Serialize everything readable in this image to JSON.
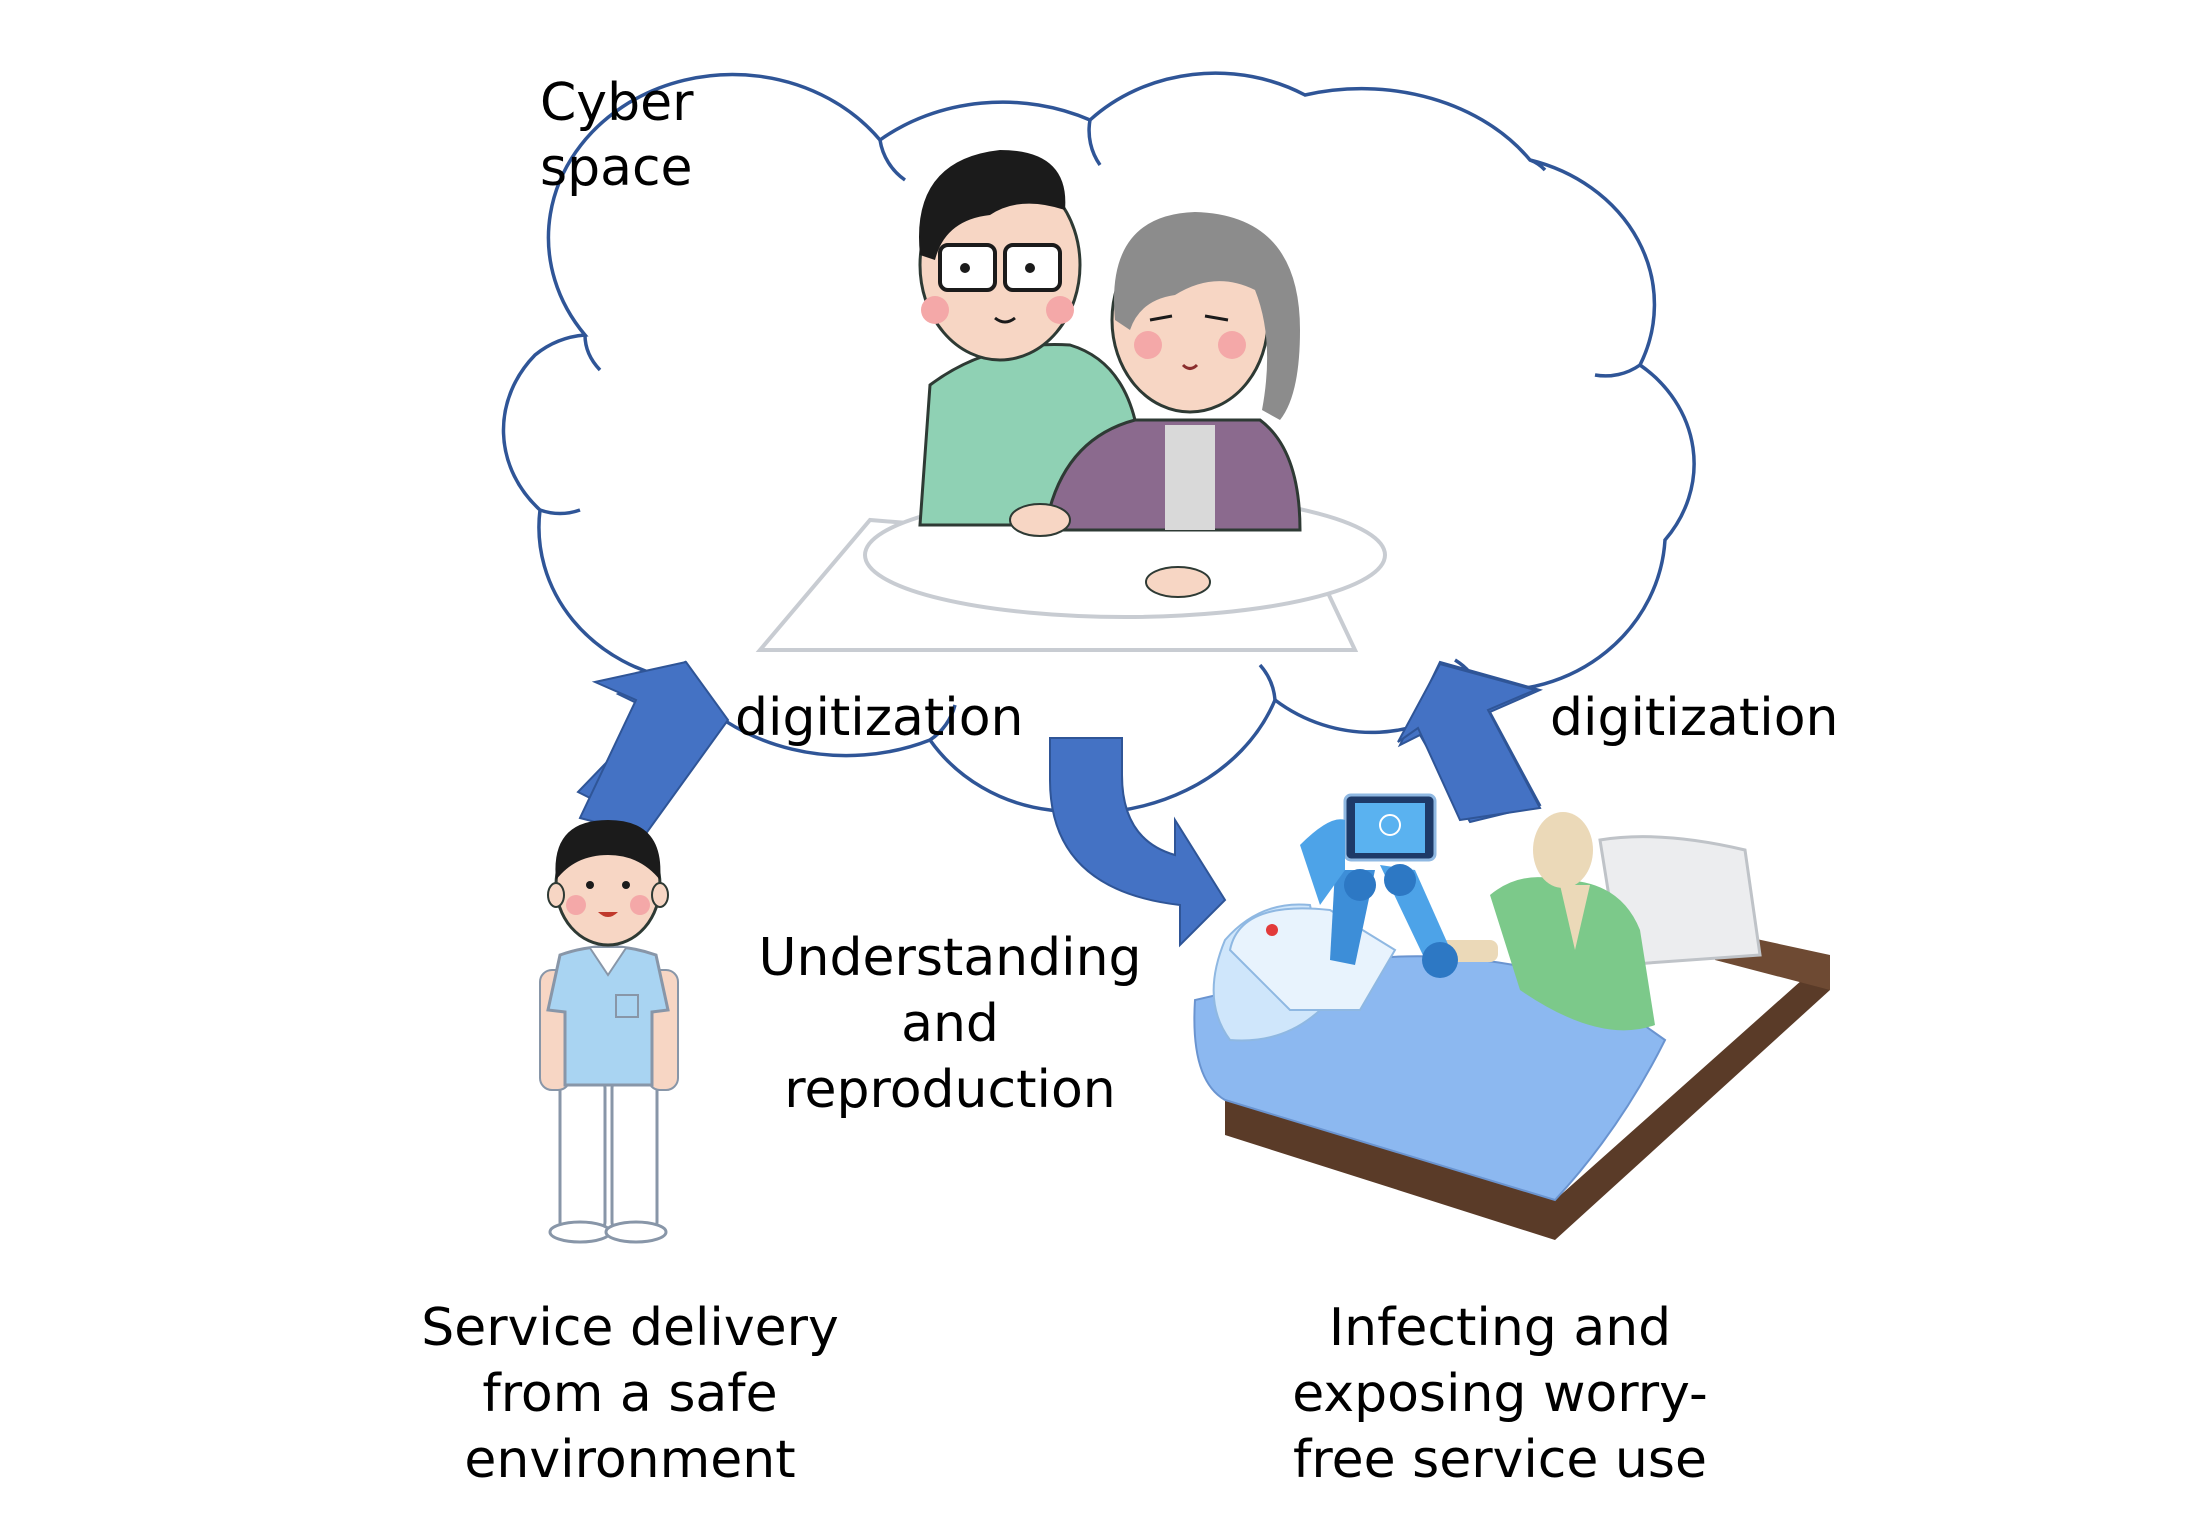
{
  "cloud": {
    "label_line1": "Cyber",
    "label_line2": "space"
  },
  "arrows": {
    "left_label": "digitization",
    "right_label": "digitization",
    "center_label_lines": [
      "Understanding",
      "and",
      "reproduction"
    ]
  },
  "captions": {
    "left_lines": [
      "Service delivery",
      "from a safe",
      "environment"
    ],
    "right_lines": [
      "Infecting and",
      "exposing worry-",
      "free service use"
    ]
  },
  "colors": {
    "arrow_fill": "#4472C4",
    "cloud_stroke": "#2F5597",
    "caregiver_shirt": "#8FD1B4",
    "elder_cardigan": "#8B6A8E",
    "nurse_shirt": "#A9D4F2",
    "robot_blue": "#4DA3E8",
    "bed_brown": "#5A3B28",
    "blanket_blue": "#8CB8F0",
    "patient_green": "#7CC98A"
  }
}
